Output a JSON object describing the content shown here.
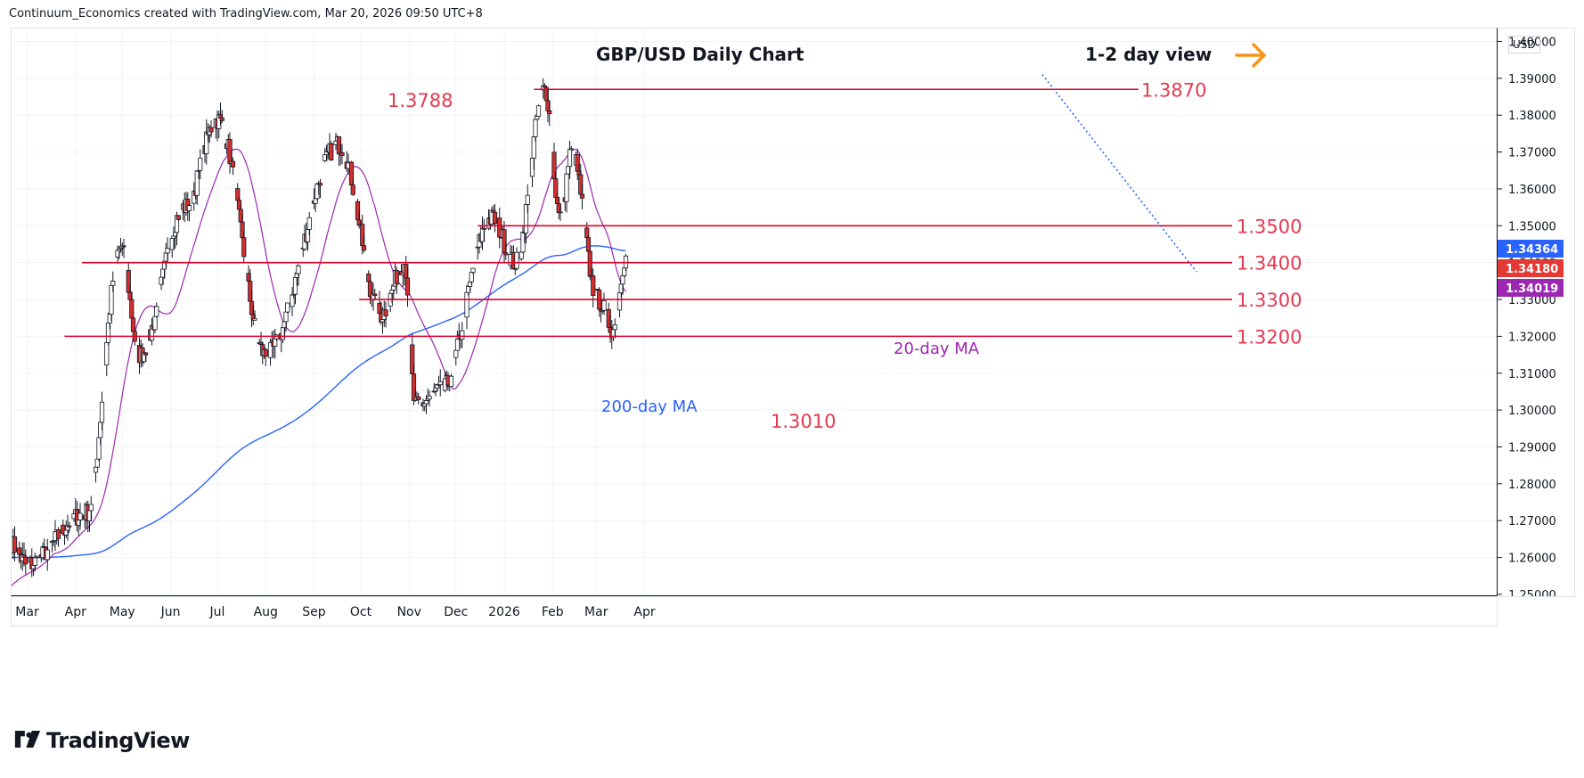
{
  "header": {
    "credit": "Continuum_Economics created with TradingView.com, Mar 20, 2026 09:50 UTC+8"
  },
  "axis": {
    "currency": "USD"
  },
  "brand": {
    "name": "TradingView"
  },
  "chart_data": {
    "type": "candlestick",
    "title": "GBP/USD Daily Chart",
    "subtitle": "1-2 day view",
    "ylim": [
      1.25,
      1.405
    ],
    "y_ticks": [
      "1.25000",
      "1.26000",
      "1.27000",
      "1.28000",
      "1.29000",
      "1.30000",
      "1.31000",
      "1.32000",
      "1.33000",
      "1.34000",
      "1.35000",
      "1.36000",
      "1.37000",
      "1.38000",
      "1.39000",
      "1.40000"
    ],
    "x_ticks": [
      "Mar",
      "Apr",
      "May",
      "Jun",
      "Jul",
      "Aug",
      "Sep",
      "Oct",
      "Nov",
      "Dec",
      "2026",
      "Feb",
      "Mar",
      "Apr"
    ],
    "price_badges": [
      {
        "label": "1.34364",
        "value": 1.34364,
        "color": "#2962ff"
      },
      {
        "label": "1.34180",
        "value": 1.3418,
        "color": "#e53935"
      },
      {
        "label": "1.34019",
        "value": 1.34019,
        "color": "#9c27b0"
      }
    ],
    "levels": [
      {
        "label": "1.3870",
        "value": 1.387
      },
      {
        "label": "1.3500",
        "value": 1.35
      },
      {
        "label": "1.3400",
        "value": 1.34
      },
      {
        "label": "1.3300",
        "value": 1.33
      },
      {
        "label": "1.3200",
        "value": 1.32
      }
    ],
    "annotations": [
      {
        "label": "1.3788",
        "value": 1.3788
      },
      {
        "label": "1.3010",
        "value": 1.301
      },
      {
        "label": "200-day MA",
        "color": "#2962ff"
      },
      {
        "label": "20-day MA",
        "color": "#9c27b0"
      }
    ],
    "key_points": [
      [
        "2025-02-28",
        1.258
      ],
      [
        "2025-04-08",
        1.272
      ],
      [
        "2025-04-30",
        1.344
      ],
      [
        "2025-05-12",
        1.315
      ],
      [
        "2025-06-10",
        1.355
      ],
      [
        "2025-07-01",
        1.3788
      ],
      [
        "2025-08-01",
        1.315
      ],
      [
        "2025-09-17",
        1.372
      ],
      [
        "2025-10-14",
        1.326
      ],
      [
        "2025-10-29",
        1.34
      ],
      [
        "2025-11-05",
        1.301
      ],
      [
        "2025-11-21",
        1.305
      ],
      [
        "2025-12-24",
        1.352
      ],
      [
        "2026-01-08",
        1.34
      ],
      [
        "2026-01-27",
        1.387
      ],
      [
        "2026-02-06",
        1.352
      ],
      [
        "2026-02-13",
        1.37
      ],
      [
        "2026-03-02",
        1.33
      ],
      [
        "2026-03-12",
        1.322
      ],
      [
        "2026-03-20",
        1.3418
      ]
    ],
    "accent_arrow": "#f7931a"
  }
}
